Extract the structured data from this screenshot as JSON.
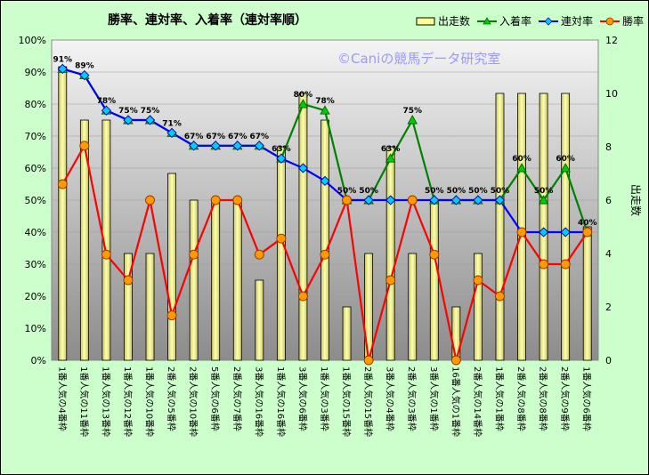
{
  "chart_data": {
    "type": "bar-line",
    "title": "勝率、連対率、入着率（連対率順）",
    "watermark": "©Caniの競馬データ研究室",
    "y_left_label": "",
    "y_right_label": "出走数",
    "y_left_range": [
      0,
      100
    ],
    "y_left_ticks": [
      "0%",
      "10%",
      "20%",
      "30%",
      "40%",
      "50%",
      "60%",
      "70%",
      "80%",
      "90%",
      "100%"
    ],
    "y_right_range": [
      0,
      12
    ],
    "y_right_ticks": [
      "0",
      "2",
      "4",
      "6",
      "8",
      "10",
      "12"
    ],
    "legend_position": "top-right",
    "categories": [
      "1番人気の4番枠",
      "1番人気の11番枠",
      "1番人気の13番枠",
      "1番人気の12番枠",
      "1番人気の10番枠",
      "2番人気の5番枠",
      "2番人気の10番枠",
      "5番人気の6番枠",
      "2番人気の7番枠",
      "3番人気の16番枠",
      "1番人気の16番枠",
      "3番人気の6番枠",
      "1番人気の3番枠",
      "1番人気の15番枠",
      "2番人気の15番枠",
      "3番人気の4番枠",
      "2番人気の3番枠",
      "3番人気の1番枠",
      "16番人気の1番枠",
      "2番人気の14番枠",
      "1番人気の1番枠",
      "2番人気の8番枠",
      "2番人気の8番枠",
      "2番人気の9番枠",
      "1番人気の6番枠"
    ],
    "series": [
      {
        "name": "出走数",
        "kind": "bar",
        "axis": "right",
        "color": "#ffff99",
        "values": [
          11,
          9,
          9,
          4,
          4,
          7,
          6,
          6,
          6,
          3,
          8,
          10,
          9,
          2,
          4,
          8,
          4,
          6,
          2,
          4,
          10,
          10,
          10,
          10,
          5
        ]
      },
      {
        "name": "入着率",
        "kind": "line",
        "axis": "left",
        "color": "#008000",
        "marker": "triangle",
        "values": [
          91,
          89,
          78,
          75,
          75,
          71,
          67,
          67,
          67,
          67,
          63,
          80,
          78,
          50,
          50,
          63,
          75,
          50,
          50,
          50,
          50,
          60,
          50,
          60,
          40
        ]
      },
      {
        "name": "連対率",
        "kind": "line",
        "axis": "left",
        "color": "#0000ff",
        "marker": "diamond",
        "values": [
          91,
          89,
          78,
          75,
          75,
          71,
          67,
          67,
          67,
          67,
          63,
          60,
          56,
          50,
          50,
          50,
          50,
          50,
          50,
          50,
          50,
          40,
          40,
          40,
          40
        ]
      },
      {
        "name": "勝率",
        "kind": "line",
        "axis": "left",
        "color": "#ff0000",
        "marker": "circle",
        "values": [
          55,
          67,
          33,
          25,
          50,
          14,
          33,
          50,
          50,
          33,
          38,
          20,
          33,
          50,
          0,
          25,
          50,
          33,
          0,
          25,
          20,
          40,
          30,
          30,
          40
        ]
      }
    ],
    "data_labels": [
      "91%",
      "89%",
      "78%",
      "75%",
      "75%",
      "71%",
      "67%",
      "67%",
      "67%",
      "67%",
      "63%",
      "80%",
      "78%",
      "50%",
      "50%",
      "63%",
      "75%",
      "50%",
      "50%",
      "50%",
      "50%",
      "60%",
      "50%",
      "60%",
      "40%"
    ]
  }
}
